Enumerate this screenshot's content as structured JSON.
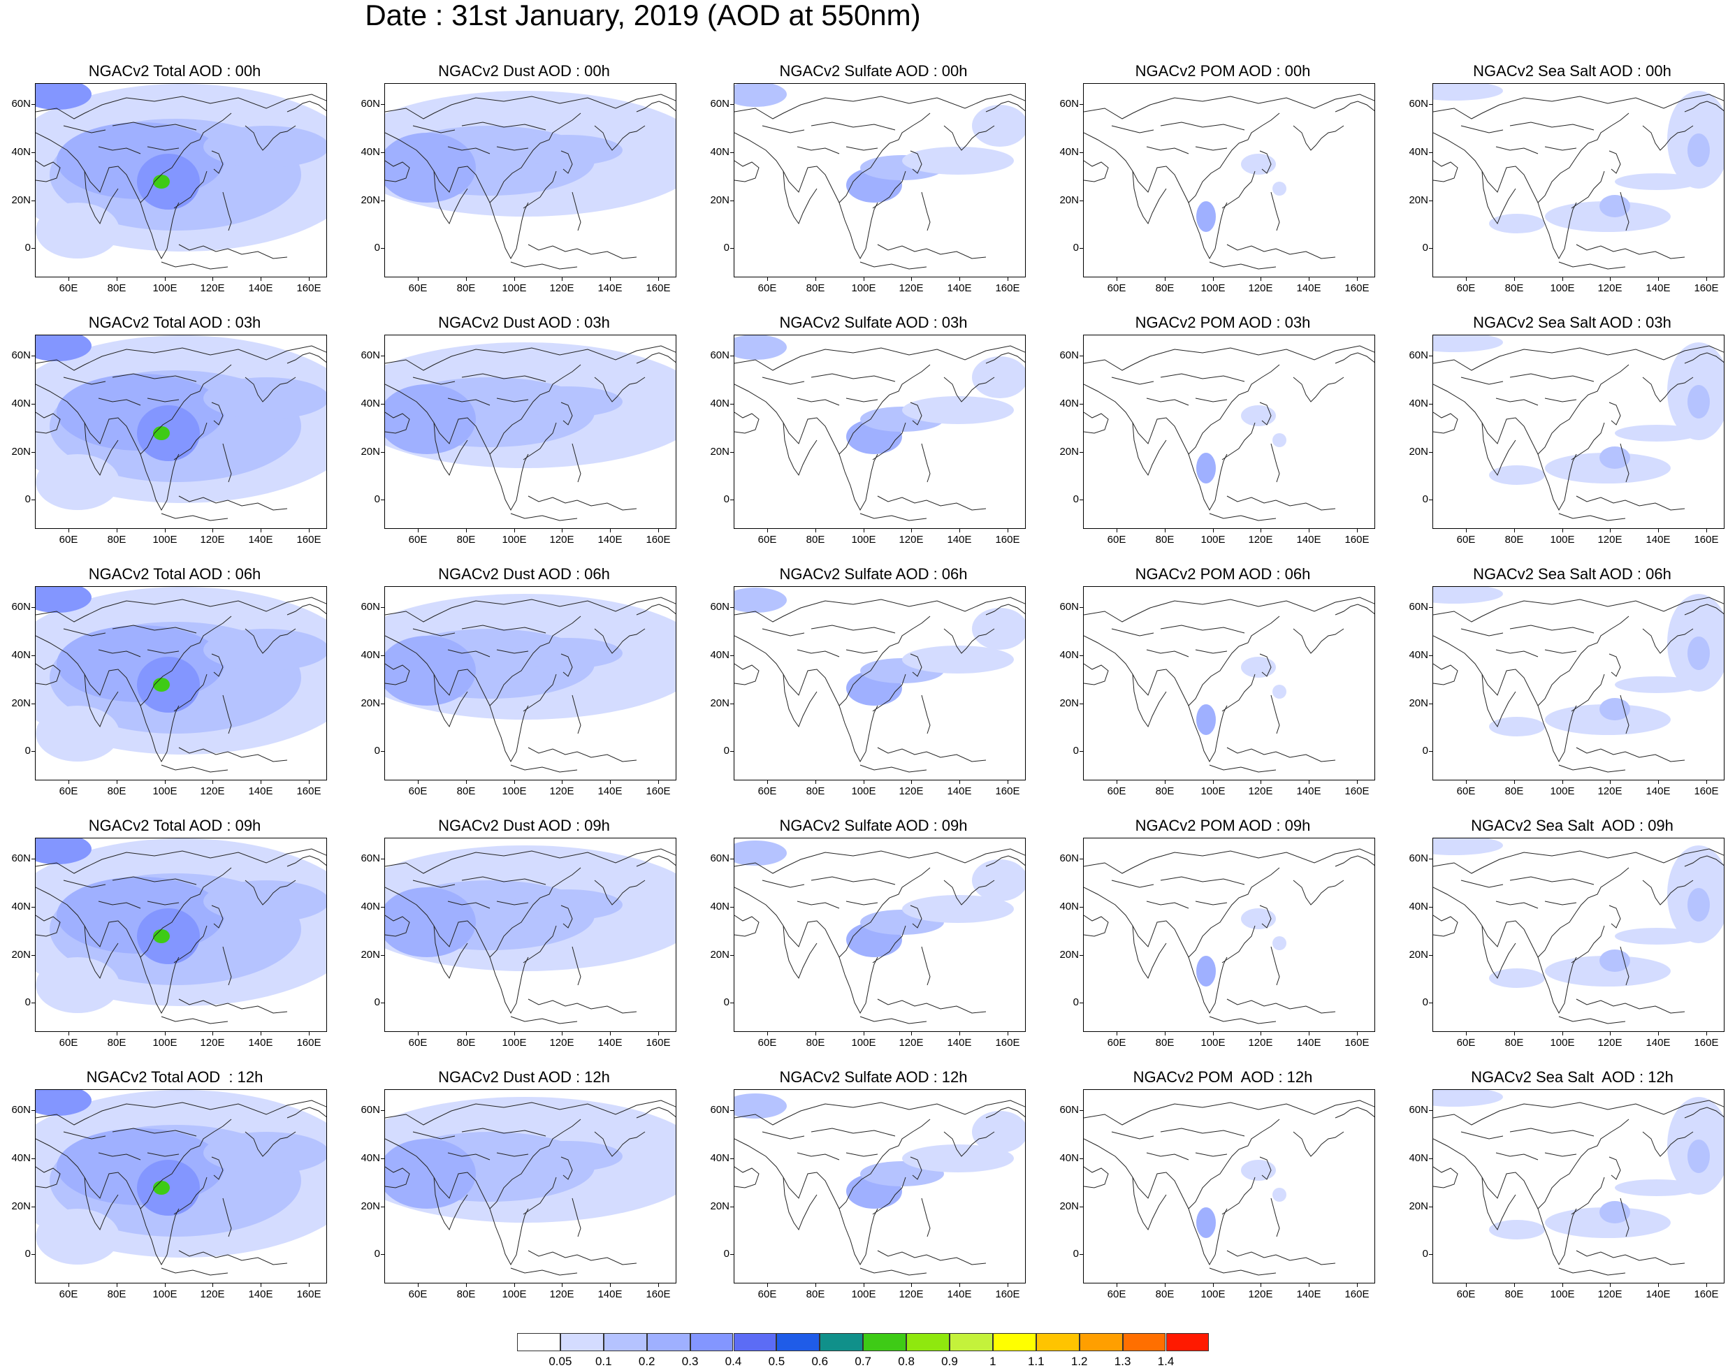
{
  "title": "Date : 31st January, 2019 (AOD at 550nm)",
  "panels": [
    [
      "NGACv2 Total AOD : 00h",
      "NGACv2 Dust AOD : 00h",
      "NGACv2 Sulfate AOD : 00h",
      "NGACv2 POM AOD : 00h",
      "NGACv2 Sea Salt AOD : 00h"
    ],
    [
      "NGACv2 Total AOD : 03h",
      "NGACv2 Dust AOD : 03h",
      "NGACv2 Sulfate AOD : 03h",
      "NGACv2 POM AOD : 03h",
      "NGACv2 Sea Salt AOD : 03h"
    ],
    [
      "NGACv2 Total AOD : 06h",
      "NGACv2 Dust AOD : 06h",
      "NGACv2 Sulfate AOD : 06h",
      "NGACv2 POM AOD : 06h",
      "NGACv2 Sea Salt AOD : 06h"
    ],
    [
      "NGACv2 Total AOD : 09h",
      "NGACv2 Dust AOD : 09h",
      "NGACv2 Sulfate AOD : 09h",
      "NGACv2 POM AOD : 09h",
      "NGACv2 Sea Salt  AOD : 09h"
    ],
    [
      "NGACv2 Total AOD  : 12h",
      "NGACv2 Dust AOD : 12h",
      "NGACv2 Sulfate AOD : 12h",
      "NGACv2 POM  AOD : 12h",
      "NGACv2 Sea Salt  AOD : 12h"
    ]
  ],
  "lat_labels": [
    "60N",
    "40N",
    "20N",
    "0"
  ],
  "lon_labels": [
    "60E",
    "80E",
    "100E",
    "120E",
    "140E",
    "160E"
  ],
  "colorbar": {
    "labels": [
      "0.05",
      "0.1",
      "0.2",
      "0.3",
      "0.4",
      "0.5",
      "0.6",
      "0.7",
      "0.8",
      "0.9",
      "1",
      "1.1",
      "1.2",
      "1.3",
      "1.4"
    ],
    "colors": [
      "#ffffff",
      "#d4dcff",
      "#b5c3ff",
      "#9fb0ff",
      "#8396ff",
      "#5c6cf5",
      "#1f5ce8",
      "#10908a",
      "#3ecb16",
      "#8fe80e",
      "#c4f23b",
      "#ffff00",
      "#ffc400",
      "#ff9f00",
      "#ff6f00",
      "#ff1a00"
    ]
  }
}
